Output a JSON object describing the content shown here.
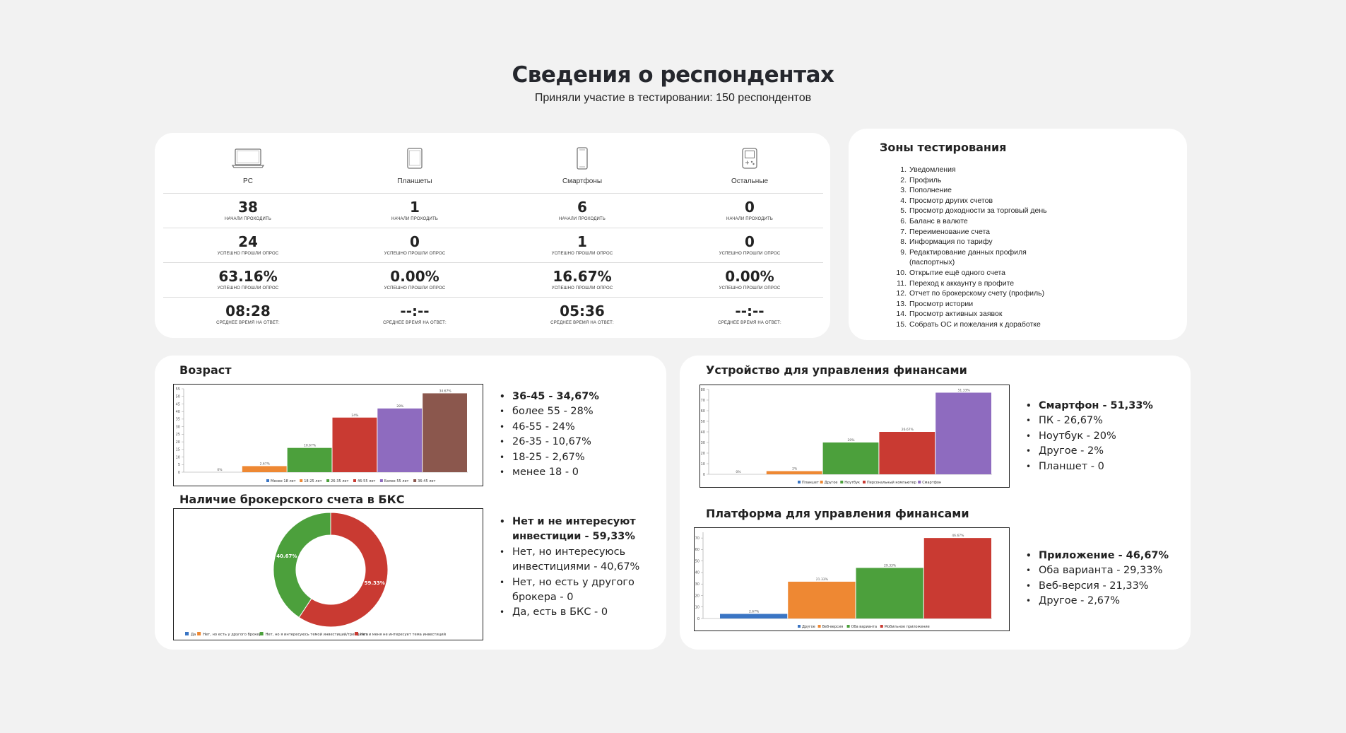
{
  "header": {
    "title": "Сведения о респондентах",
    "subtitle": "Приняли участие в тестировании: 150 респондентов"
  },
  "stats": {
    "columns": [
      {
        "device": "PC",
        "icon": "laptop-icon",
        "started": "38",
        "started_label": "начали проходить",
        "passed": "24",
        "passed_label": "успешно прошли опрос",
        "percent": "63.16%",
        "percent_label": "успешно прошли опрос",
        "time": "08:28",
        "time_label": "среднее время на ответ:"
      },
      {
        "device": "Планшеты",
        "icon": "tablet-icon",
        "started": "1",
        "started_label": "начали проходить",
        "passed": "0",
        "passed_label": "успешно прошли опрос",
        "percent": "0.00%",
        "percent_label": "успешно прошли опрос",
        "time": "--:--",
        "time_label": "среднее время на ответ:"
      },
      {
        "device": "Смартфоны",
        "icon": "smartphone-icon",
        "started": "6",
        "started_label": "начали проходить",
        "passed": "1",
        "passed_label": "успешно прошли опрос",
        "percent": "16.67%",
        "percent_label": "успешно прошли опрос",
        "time": "05:36",
        "time_label": "среднее время на ответ:"
      },
      {
        "device": "Остальные",
        "icon": "gamepad-icon",
        "started": "0",
        "started_label": "начали проходить",
        "passed": "0",
        "passed_label": "успешно прошли опрос",
        "percent": "0.00%",
        "percent_label": "успешно прошли опрос",
        "time": "--:--",
        "time_label": "среднее время на ответ:"
      }
    ]
  },
  "zones": {
    "title": "Зоны тестирования",
    "items": [
      {
        "n": "1.",
        "text": "Уведомления"
      },
      {
        "n": "2.",
        "text": "Профиль"
      },
      {
        "n": "3.",
        "text": "Пополнение"
      },
      {
        "n": "4.",
        "text": "Просмотр других счетов"
      },
      {
        "n": "5.",
        "text": "Просмотр доходности за торговый день"
      },
      {
        "n": "6.",
        "text": "Баланс в валюте"
      },
      {
        "n": "7.",
        "text": "Переименование счета"
      },
      {
        "n": "8.",
        "text": "Информация по тарифу"
      },
      {
        "n": "9.",
        "text": "Редактирование данных профиля (паспортных)"
      },
      {
        "n": "10.",
        "text": "Открытие ещё одного счета"
      },
      {
        "n": "11.",
        "text": "Переход к аккаунту в профите"
      },
      {
        "n": "12.",
        "text": "Отчет по брокерскому счету (профиль)"
      },
      {
        "n": "13.",
        "text": "Просмотр истории"
      },
      {
        "n": "14.",
        "text": "Просмотр активных заявок"
      },
      {
        "n": "15.",
        "text": "Собрать ОС и пожелания к доработке"
      }
    ]
  },
  "age": {
    "title": "Возраст",
    "bullets": [
      "36-45 - 34,67%",
      "более 55 - 28%",
      "46-55 - 24%",
      "26-35 - 10,67%",
      "18-25 - 2,67%",
      "менее 18 - 0"
    ]
  },
  "broker": {
    "title": "Наличие брокерского счета в БКС",
    "bullets": [
      "Нет и не интересуют инвестиции - 59,33%",
      "Нет, но интересуюсь инвестициями - 40,67%",
      "Нет, но есть у другого брокера - 0",
      "Да, есть в БКС - 0"
    ]
  },
  "device": {
    "title": "Устройство для управления финансами",
    "bullets": [
      "Смартфон - 51,33%",
      "ПК - 26,67%",
      "Ноутбук - 20%",
      "Другое - 2%",
      "Планшет - 0"
    ]
  },
  "platform": {
    "title": "Платформа для управления финансами",
    "bullets": [
      "Приложение - 46,67%",
      "Оба варианта - 29,33%",
      "Веб-версия - 21,33%",
      "Другое - 2,67%"
    ]
  },
  "chart_data": [
    {
      "id": "age",
      "type": "bar",
      "categories": [
        "Менее 18 лет",
        "18-25 лет",
        "26-35 лет",
        "46-55 лет",
        "Более 55 лет",
        "36-45 лет"
      ],
      "values": [
        0,
        4,
        16,
        36,
        42,
        52
      ],
      "labels": [
        "0%",
        "2.67%",
        "10.67%",
        "24%",
        "28%",
        "34.67%"
      ],
      "colors": [
        "#3a75c4",
        "#ee8833",
        "#4ca03c",
        "#c93a32",
        "#8e6bbf",
        "#8b574d"
      ],
      "ylim": [
        0,
        55
      ],
      "yticks": [
        0,
        5,
        10,
        15,
        20,
        25,
        30,
        35,
        40,
        45,
        50,
        55
      ]
    },
    {
      "id": "broker",
      "type": "pie",
      "categories": [
        "Да",
        "Нет, но есть у другого брокера",
        "Нет, но я интересуюсь темой инвестиций/трейдинга",
        "Нет и меня не интересует тема инвестиций"
      ],
      "values": [
        0,
        0,
        40.67,
        59.33
      ],
      "labels": [
        "",
        "",
        "40.67%",
        "59.33%"
      ],
      "colors": [
        "#3a75c4",
        "#ee8833",
        "#4ca03c",
        "#c93a32"
      ]
    },
    {
      "id": "device",
      "type": "bar",
      "categories": [
        "Планшет",
        "Другое",
        "Ноутбук",
        "Персональный компьютер",
        "Смартфон"
      ],
      "values": [
        0,
        3,
        30,
        40,
        77
      ],
      "labels": [
        "0%",
        "2%",
        "20%",
        "26.67%",
        "51.33%"
      ],
      "colors": [
        "#3a75c4",
        "#ee8833",
        "#4ca03c",
        "#c93a32",
        "#8e6bbf"
      ],
      "ylim": [
        0,
        80
      ],
      "yticks": [
        0,
        10,
        20,
        30,
        40,
        50,
        60,
        70,
        80
      ]
    },
    {
      "id": "platform",
      "type": "bar",
      "categories": [
        "Другое",
        "Веб-версия",
        "Оба варианта",
        "Мобильное приложение"
      ],
      "values": [
        4,
        32,
        44,
        70
      ],
      "labels": [
        "2.67%",
        "21.33%",
        "29.33%",
        "46.67%"
      ],
      "colors": [
        "#3a75c4",
        "#ee8833",
        "#4ca03c",
        "#c93a32"
      ],
      "ylim": [
        0,
        75
      ],
      "yticks": [
        0,
        10,
        20,
        30,
        40,
        50,
        60,
        70
      ]
    }
  ]
}
